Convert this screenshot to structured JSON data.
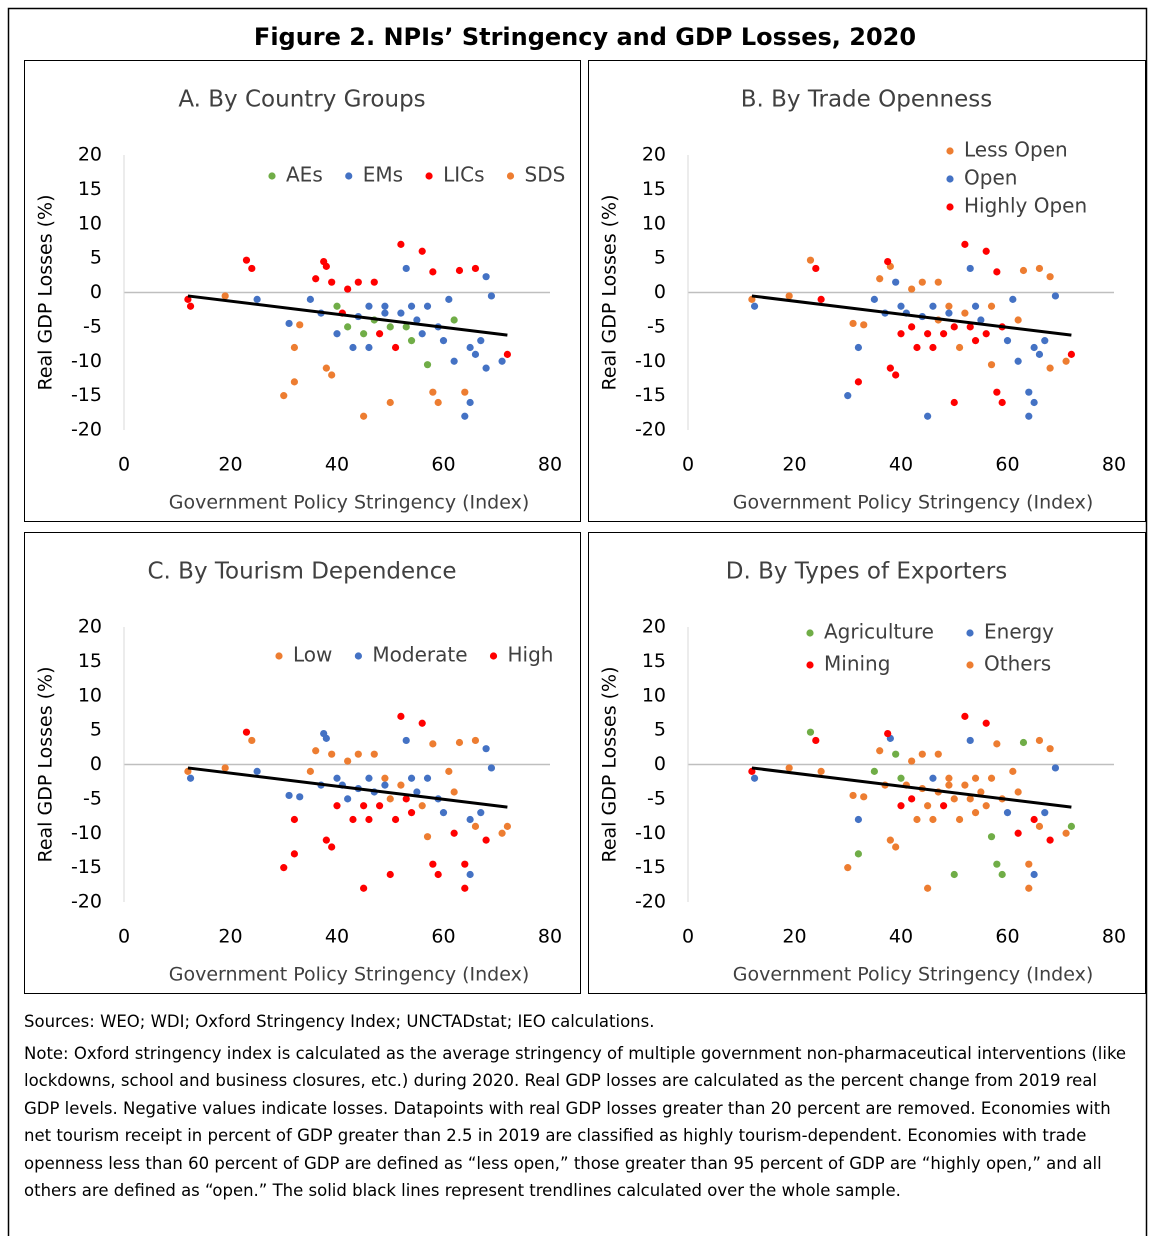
{
  "title": "Figure 2. NPIs’ Stringency and GDP Losses, 2020",
  "notes": [
    "Sources: WEO; WDI; Oxford Stringency Index; UNCTADstat; IEO calculations.",
    "Note: Oxford stringency index is calculated as the average stringency of multiple government non-pharmaceutical interventions (like lockdowns, school and business closures, etc.) during 2020. Real GDP losses are calculated as the percent change from 2019 real GDP levels. Negative values indicate losses. Datapoints with real GDP losses greater than 20 percent are removed. Economies with net tourism receipt in percent of GDP greater than 2.5 in 2019 are classified as highly tourism-dependent. Economies with trade openness less than 60 percent of GDP are defined as “less open,” those greater than 95 percent of GDP are “highly open,” and all others are defined as “open.” The solid black lines represent trendlines calculated over the whole sample."
  ],
  "chart_data": [
    {
      "type": "scatter",
      "title": "A. By Country Groups",
      "xlabel": "Government Policy Stringency (Index)",
      "ylabel": "Real GDP Losses (%)",
      "xlim": [
        0,
        80
      ],
      "ylim": [
        -20,
        20
      ],
      "xticks": [
        0,
        20,
        40,
        60,
        80
      ],
      "yticks": [
        -20,
        -15,
        -10,
        -5,
        0,
        5,
        10,
        15,
        20
      ],
      "legend_columns": 4,
      "series": [
        {
          "name": "AEs",
          "color": "#70ad47",
          "x": [
            40,
            42,
            45,
            47,
            50,
            53,
            54,
            57,
            62
          ],
          "values": [
            -2,
            -5,
            -6,
            -4,
            -5,
            -5,
            -7,
            -10.5,
            -4
          ]
        },
        {
          "name": "EMs",
          "color": "#4472c4",
          "x": [
            25,
            31,
            35,
            37,
            40,
            43,
            44,
            46,
            46,
            49,
            49,
            52,
            53,
            54,
            55,
            56,
            57,
            59,
            60,
            61,
            62,
            64,
            65,
            65,
            66,
            67,
            68,
            68,
            69,
            71
          ],
          "values": [
            -1,
            -4.5,
            -1,
            -3,
            -6,
            -8,
            -3.5,
            -2,
            -8,
            -3,
            -2,
            -3,
            3.5,
            -2,
            -4,
            -6,
            -2,
            -5,
            -7,
            -1,
            -10,
            -18,
            -16,
            -8,
            -9,
            -7,
            -11,
            2.3,
            -0.5,
            -10
          ]
        },
        {
          "name": "LICs",
          "color": "#ff0000",
          "x": [
            12,
            12.5,
            23,
            24,
            36,
            37.5,
            38,
            39,
            41,
            42,
            44,
            47,
            48,
            51,
            52,
            56,
            58,
            63,
            66,
            72
          ],
          "values": [
            -1,
            -2,
            4.7,
            3.5,
            2,
            4.5,
            3.8,
            1.5,
            -3,
            0.5,
            1.5,
            1.5,
            -6,
            -8,
            7,
            6,
            3,
            3.2,
            3.5,
            -9
          ]
        },
        {
          "name": "SDS",
          "color": "#ed7d31",
          "x": [
            19,
            30,
            32,
            32,
            33,
            38,
            39,
            45,
            50,
            58,
            59,
            64
          ],
          "values": [
            -0.5,
            -15,
            -8,
            -13,
            -4.7,
            -11,
            -12,
            -18,
            -16,
            -14.5,
            -16,
            -14.5
          ]
        }
      ],
      "trendline": {
        "x": [
          12,
          72
        ],
        "y": [
          -0.5,
          -6.2
        ]
      }
    },
    {
      "type": "scatter",
      "title": "B. By Trade Openness",
      "xlabel": "Government Policy Stringency (Index)",
      "ylabel": "Real GDP Losses (%)",
      "xlim": [
        0,
        80
      ],
      "ylim": [
        -20,
        20
      ],
      "xticks": [
        0,
        20,
        40,
        60,
        80
      ],
      "yticks": [
        -20,
        -15,
        -10,
        -5,
        0,
        5,
        10,
        15,
        20
      ],
      "legend_columns": 1,
      "series": [
        {
          "name": "Less Open",
          "color": "#ed7d31",
          "x": [
            12,
            19,
            23,
            31,
            33,
            36,
            38,
            42,
            44,
            47,
            47,
            49,
            51,
            52,
            57,
            57,
            62,
            63,
            66,
            68,
            68,
            71
          ],
          "values": [
            -1,
            -0.5,
            4.7,
            -4.5,
            -4.7,
            2,
            3.8,
            0.5,
            1.5,
            1.5,
            -4,
            -2,
            -8,
            -3,
            -10.5,
            -2,
            -4,
            3.2,
            3.5,
            -11,
            2.3,
            -10
          ]
        },
        {
          "name": "Open",
          "color": "#4472c4",
          "x": [
            12.5,
            30,
            32,
            35,
            37,
            39,
            40,
            41,
            44,
            45,
            46,
            49,
            53,
            54,
            55,
            60,
            61,
            62,
            64,
            64,
            65,
            65,
            66,
            67,
            69
          ],
          "values": [
            -2,
            -15,
            -8,
            -1,
            -3,
            1.5,
            -2,
            -3,
            -3.5,
            -18,
            -2,
            -3,
            3.5,
            -2,
            -4,
            -7,
            -1,
            -10,
            -14.5,
            -18,
            -16,
            -8,
            -9,
            -7,
            -0.5
          ]
        },
        {
          "name": "Highly Open",
          "color": "#ff0000",
          "x": [
            24,
            25,
            32,
            37.5,
            38,
            39,
            40,
            42,
            43,
            45,
            46,
            48,
            50,
            50,
            52,
            53,
            54,
            56,
            56,
            58,
            58,
            59,
            59,
            72
          ],
          "values": [
            3.5,
            -1,
            -13,
            4.5,
            -11,
            -12,
            -6,
            -5,
            -8,
            -6,
            -8,
            -6,
            -16,
            -5,
            7,
            -5,
            -7,
            6,
            -6,
            -14.5,
            3,
            -16,
            -5,
            -9
          ]
        }
      ],
      "trendline": {
        "x": [
          12,
          72
        ],
        "y": [
          -0.5,
          -6.2
        ]
      }
    },
    {
      "type": "scatter",
      "title": "C. By Tourism Dependence",
      "xlabel": "Government Policy Stringency (Index)",
      "ylabel": "Real GDP Losses (%)",
      "xlim": [
        0,
        80
      ],
      "ylim": [
        -20,
        20
      ],
      "xticks": [
        0,
        20,
        40,
        60,
        80
      ],
      "yticks": [
        -20,
        -15,
        -10,
        -5,
        0,
        5,
        10,
        15,
        20
      ],
      "legend_columns": 3,
      "series": [
        {
          "name": "Low",
          "color": "#ed7d31",
          "x": [
            12,
            19,
            24,
            35,
            36,
            39,
            42,
            44,
            47,
            49,
            50,
            52,
            56,
            57,
            58,
            61,
            62,
            63,
            66,
            66,
            71,
            72
          ],
          "values": [
            -1,
            -0.5,
            3.5,
            -1,
            2,
            1.5,
            0.5,
            1.5,
            1.5,
            -2,
            -5,
            -3,
            -6,
            -10.5,
            3,
            -1,
            -4,
            3.2,
            3.5,
            -9,
            -10,
            -9
          ]
        },
        {
          "name": "Moderate",
          "color": "#4472c4",
          "x": [
            12.5,
            25,
            31,
            33,
            37,
            37.5,
            38,
            40,
            41,
            42,
            44,
            46,
            47,
            49,
            53,
            54,
            55,
            57,
            59,
            60,
            65,
            65,
            67,
            68,
            69
          ],
          "values": [
            -2,
            -1,
            -4.5,
            -4.7,
            -3,
            4.5,
            3.8,
            -2,
            -3,
            -5,
            -3.5,
            -2,
            -4,
            -3,
            3.5,
            -2,
            -4,
            -2,
            -5,
            -7,
            -16,
            -8,
            -7,
            2.3,
            -0.5
          ]
        },
        {
          "name": "High",
          "color": "#ff0000",
          "x": [
            23,
            30,
            32,
            32,
            38,
            39,
            40,
            43,
            45,
            45,
            46,
            48,
            50,
            51,
            52,
            53,
            54,
            56,
            58,
            59,
            62,
            64,
            64,
            68
          ],
          "values": [
            4.7,
            -15,
            -8,
            -13,
            -11,
            -12,
            -6,
            -8,
            -18,
            -6,
            -8,
            -6,
            -16,
            -8,
            7,
            -5,
            -7,
            6,
            -14.5,
            -16,
            -10,
            -14.5,
            -18,
            -11
          ]
        }
      ],
      "trendline": {
        "x": [
          12,
          72
        ],
        "y": [
          -0.5,
          -6.2
        ]
      }
    },
    {
      "type": "scatter",
      "title": "D. By Types of Exporters",
      "xlabel": "Government Policy Stringency (Index)",
      "ylabel": "Real GDP Losses (%)",
      "xlim": [
        0,
        80
      ],
      "ylim": [
        -20,
        20
      ],
      "xticks": [
        0,
        20,
        40,
        60,
        80
      ],
      "yticks": [
        -20,
        -15,
        -10,
        -5,
        0,
        5,
        10,
        15,
        20
      ],
      "legend_columns": 2,
      "series": [
        {
          "name": "Agriculture",
          "color": "#70ad47",
          "x": [
            23,
            32,
            35,
            39,
            40,
            50,
            57,
            58,
            59,
            63,
            72
          ],
          "values": [
            4.7,
            -13,
            -1,
            1.5,
            -2,
            -16,
            -10.5,
            -14.5,
            -16,
            3.2,
            -9
          ]
        },
        {
          "name": "Energy",
          "color": "#4472c4",
          "x": [
            12.5,
            32,
            38,
            46,
            53,
            60,
            65,
            67,
            69
          ],
          "values": [
            -2,
            -8,
            3.8,
            -2,
            3.5,
            -7,
            -16,
            -7,
            -0.5
          ]
        },
        {
          "name": "Mining",
          "color": "#ff0000",
          "x": [
            12,
            24,
            37.5,
            40,
            42,
            48,
            52,
            56,
            62,
            65,
            68
          ],
          "values": [
            -1,
            3.5,
            4.5,
            -6,
            -5,
            -6,
            7,
            6,
            -10,
            -8,
            -11
          ]
        },
        {
          "name": "Others",
          "color": "#ed7d31",
          "x": [
            19,
            25,
            30,
            31,
            33,
            36,
            37,
            38,
            39,
            41,
            42,
            43,
            44,
            44,
            45,
            45,
            46,
            47,
            47,
            49,
            49,
            50,
            51,
            52,
            53,
            54,
            54,
            55,
            56,
            57,
            58,
            59,
            61,
            62,
            64,
            64,
            66,
            66,
            68,
            71
          ],
          "values": [
            -0.5,
            -1,
            -15,
            -4.5,
            -4.7,
            2,
            -3,
            -11,
            -12,
            -3,
            0.5,
            -8,
            -3.5,
            1.5,
            -18,
            -6,
            -8,
            1.5,
            -4,
            -3,
            -2,
            -5,
            -8,
            -3,
            -5,
            -2,
            -7,
            -4,
            -6,
            -2,
            3,
            -5,
            -1,
            -4,
            -14.5,
            -18,
            3.5,
            -9,
            2.3,
            -10
          ]
        }
      ],
      "trendline": {
        "x": [
          12,
          72
        ],
        "y": [
          -0.5,
          -6.2
        ]
      }
    }
  ]
}
